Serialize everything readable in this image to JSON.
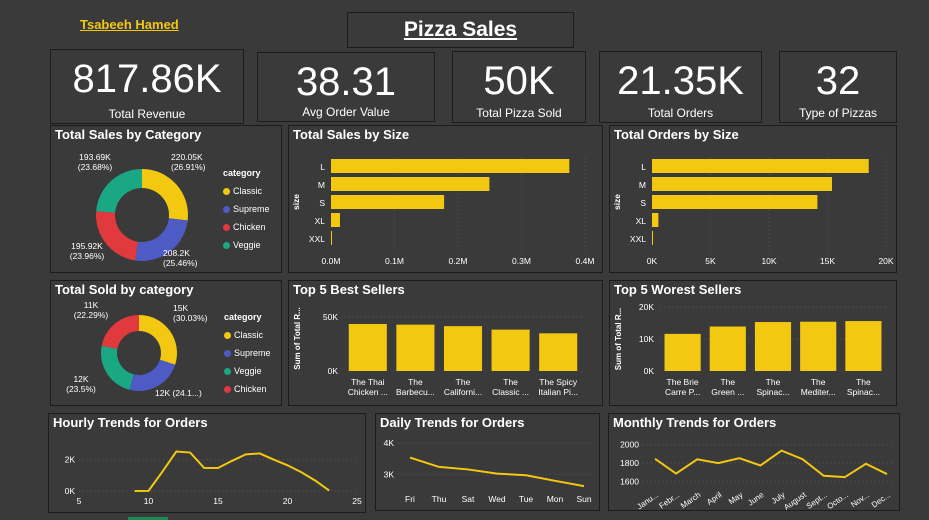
{
  "header": {
    "author": "Tsabeeh Hamed",
    "title": "Pizza Sales"
  },
  "kpis": [
    {
      "value": "817.86K",
      "label": "Total Revenue"
    },
    {
      "value": "38.31",
      "label": "Avg Order Value"
    },
    {
      "value": "50K",
      "label": "Total Pizza Sold"
    },
    {
      "value": "21.35K",
      "label": "Total Orders"
    },
    {
      "value": "32",
      "label": "Type of Pizzas"
    }
  ],
  "colors": {
    "classic": "#f2c811",
    "supreme": "#4f5bc4",
    "chicken": "#e03a3e",
    "veggie": "#1aa884",
    "bar": "#f2c811",
    "line": "#f2c811"
  },
  "chart_data": [
    {
      "id": "sales_by_category",
      "type": "pie",
      "title": "Total Sales by Category",
      "legend_title": "category",
      "legend_placement": "right",
      "slices": [
        {
          "name": "Classic",
          "value": 220.05,
          "label": "220.05K",
          "pct": "(26.91%)"
        },
        {
          "name": "Supreme",
          "value": 208.2,
          "label": "208.2K",
          "pct": "(25.46%)"
        },
        {
          "name": "Chicken",
          "value": 195.92,
          "label": "195.92K",
          "pct": "(23.96%)"
        },
        {
          "name": "Veggie",
          "value": 193.69,
          "label": "193.69K",
          "pct": "(23.68%)"
        }
      ]
    },
    {
      "id": "sales_by_size",
      "type": "bar",
      "orientation": "horizontal",
      "title": "Total Sales by Size",
      "ylabel": "size",
      "categories": [
        "L",
        "M",
        "S",
        "XL",
        "XXL"
      ],
      "values": [
        375.3,
        249.4,
        178.1,
        14.1,
        1.0
      ],
      "xlim": [
        0,
        400
      ],
      "ticks": [
        "0.0M",
        "0.1M",
        "0.2M",
        "0.3M",
        "0.4M"
      ]
    },
    {
      "id": "orders_by_size",
      "type": "bar",
      "orientation": "horizontal",
      "title": "Total Orders by Size",
      "ylabel": "size",
      "categories": [
        "L",
        "M",
        "S",
        "XL",
        "XXL"
      ],
      "values": [
        18526,
        15385,
        14137,
        544,
        28
      ],
      "xlim": [
        0,
        20000
      ],
      "ticks": [
        "0K",
        "5K",
        "10K",
        "15K",
        "20K"
      ]
    },
    {
      "id": "sold_by_category",
      "type": "pie",
      "title": "Total Sold by category",
      "legend_title": "category",
      "legend_placement": "right",
      "slices": [
        {
          "name": "Classic",
          "value": 15,
          "label": "15K",
          "pct": "(30.03%)"
        },
        {
          "name": "Supreme",
          "value": 12,
          "label": "12K (24.1...)",
          "pct": ""
        },
        {
          "name": "Veggie",
          "value": 12,
          "label": "12K",
          "pct": "(23.5%)"
        },
        {
          "name": "Chicken",
          "value": 11,
          "label": "11K",
          "pct": "(22.29%)"
        }
      ]
    },
    {
      "id": "top5_best",
      "type": "bar",
      "title": "Top 5 Best Sellers",
      "ylabel": "Sum of Total R...",
      "categories": [
        [
          "The Thai",
          "Chicken ..."
        ],
        [
          "The",
          "Barbecu..."
        ],
        [
          "The",
          "Californi..."
        ],
        [
          "The",
          "Classic ..."
        ],
        [
          "The Spicy",
          "Italian Pi..."
        ]
      ],
      "values": [
        43.4,
        42.8,
        41.4,
        38.2,
        34.8
      ],
      "ylim": [
        0,
        60
      ],
      "ticks": [
        {
          "v": 0,
          "t": "0K"
        },
        {
          "v": 50,
          "t": "50K"
        }
      ]
    },
    {
      "id": "top5_worst",
      "type": "bar",
      "title": "Top 5 Worest Sellers",
      "ylabel": "Sum of Total R...",
      "categories": [
        [
          "The Brie",
          "Carre P..."
        ],
        [
          "The",
          "Green ..."
        ],
        [
          "The",
          "Spinac..."
        ],
        [
          "The",
          "Mediter..."
        ],
        [
          "The",
          "Spinac..."
        ]
      ],
      "values": [
        11.6,
        13.9,
        15.3,
        15.4,
        15.6
      ],
      "ylim": [
        0,
        20
      ],
      "ticks": [
        {
          "v": 0,
          "t": "0K"
        },
        {
          "v": 10,
          "t": "10K"
        },
        {
          "v": 20,
          "t": "20K"
        }
      ]
    },
    {
      "id": "hourly",
      "type": "line",
      "title": "Hourly Trends for Orders",
      "x": [
        9,
        10,
        11,
        12,
        13,
        14,
        15,
        16,
        17,
        18,
        19,
        20,
        21,
        22,
        23
      ],
      "values": [
        1,
        8,
        1231,
        2520,
        2455,
        1472,
        1468,
        1920,
        2336,
        2399,
        2009,
        1642,
        1198,
        663,
        28
      ],
      "xlim": [
        5,
        25
      ],
      "ylim": [
        0,
        3000
      ],
      "xticks": [
        5,
        10,
        15,
        20,
        25
      ],
      "yticks": [
        {
          "v": 0,
          "t": "0K"
        },
        {
          "v": 2000,
          "t": "2K"
        }
      ]
    },
    {
      "id": "daily",
      "type": "line",
      "title": "Daily Trends for Orders",
      "categories": [
        "Fri",
        "Thu",
        "Sat",
        "Wed",
        "Tue",
        "Mon",
        "Sun"
      ],
      "values": [
        3538,
        3239,
        3158,
        3024,
        2973,
        2794,
        2624
      ],
      "ylim": [
        2500,
        4100
      ],
      "yticks": [
        {
          "v": 3000,
          "t": "3K"
        },
        {
          "v": 4000,
          "t": "4K"
        }
      ]
    },
    {
      "id": "monthly",
      "type": "line",
      "title": "Monthly Trends for Orders",
      "categories": [
        "Janu...",
        "Febr...",
        "March",
        "April",
        "May",
        "June",
        "July",
        "August",
        "Sept...",
        "Octo...",
        "Nov...",
        "Dec..."
      ],
      "values": [
        1845,
        1685,
        1840,
        1799,
        1853,
        1773,
        1935,
        1841,
        1661,
        1646,
        1792,
        1680
      ],
      "ylim": [
        1550,
        2050
      ],
      "yticks": [
        {
          "v": 1600,
          "t": "1600"
        },
        {
          "v": 1800,
          "t": "1800"
        },
        {
          "v": 2000,
          "t": "2000"
        }
      ]
    }
  ]
}
